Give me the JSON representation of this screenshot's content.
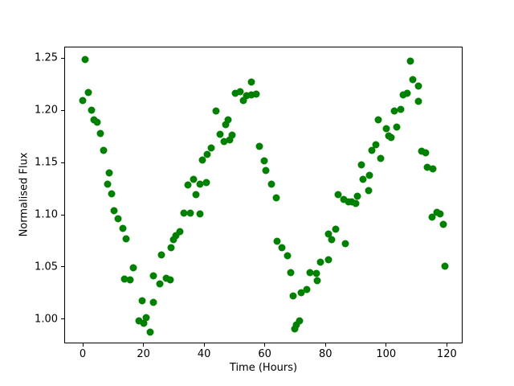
{
  "chart_data": {
    "type": "scatter",
    "title": "",
    "xlabel": "Time (Hours)",
    "ylabel": "Normalised Flux",
    "marker_color": "#008000",
    "marker_size_px": 9,
    "grid": false,
    "legend_position": "none",
    "xlim": [
      -6.1,
      125.2
    ],
    "ylim": [
      0.9768,
      1.2611
    ],
    "x_ticks": [
      0,
      20,
      40,
      60,
      80,
      100,
      120
    ],
    "y_ticks": [
      "1.00",
      "1.05",
      "1.10",
      "1.15",
      "1.20",
      "1.25"
    ],
    "points": [
      [
        -0.1,
        1.2098
      ],
      [
        0.8,
        1.2485
      ],
      [
        1.9,
        1.2175
      ],
      [
        2.9,
        1.2
      ],
      [
        3.7,
        1.191
      ],
      [
        4.7,
        1.1885
      ],
      [
        5.7,
        1.1777
      ],
      [
        7.0,
        1.1615
      ],
      [
        8.1,
        1.1295
      ],
      [
        8.8,
        1.1398
      ],
      [
        9.5,
        1.12
      ],
      [
        10.4,
        1.1041
      ],
      [
        11.7,
        1.0959
      ],
      [
        13.3,
        1.0871
      ],
      [
        14.3,
        1.0769
      ],
      [
        13.7,
        1.0387
      ],
      [
        15.5,
        1.0379
      ],
      [
        16.7,
        1.049
      ],
      [
        18.6,
        0.9985
      ],
      [
        19.5,
        1.0175
      ],
      [
        20.1,
        0.9959
      ],
      [
        21.0,
        1.0015
      ],
      [
        22.3,
        0.9874
      ],
      [
        23.2,
        1.0164
      ],
      [
        23.2,
        1.0418
      ],
      [
        25.3,
        1.0341
      ],
      [
        25.9,
        1.0618
      ],
      [
        27.4,
        1.0392
      ],
      [
        28.8,
        1.0374
      ],
      [
        29.0,
        1.0682
      ],
      [
        29.9,
        1.0759
      ],
      [
        30.8,
        1.0803
      ],
      [
        32.1,
        1.0841
      ],
      [
        33.3,
        1.1015
      ],
      [
        35.4,
        1.1015
      ],
      [
        38.6,
        1.101
      ],
      [
        37.3,
        1.1192
      ],
      [
        34.6,
        1.1283
      ],
      [
        36.5,
        1.1341
      ],
      [
        38.7,
        1.1295
      ],
      [
        40.7,
        1.131
      ],
      [
        39.5,
        1.1527
      ],
      [
        41.1,
        1.1581
      ],
      [
        42.4,
        1.1638
      ],
      [
        43.9,
        1.1995
      ],
      [
        45.2,
        1.1772
      ],
      [
        46.6,
        1.1702
      ],
      [
        48.3,
        1.1715
      ],
      [
        47.2,
        1.1867
      ],
      [
        47.8,
        1.1913
      ],
      [
        49.3,
        1.1764
      ],
      [
        50.4,
        1.2165
      ],
      [
        52.0,
        1.2177
      ],
      [
        52.8,
        1.2092
      ],
      [
        54.0,
        1.2141
      ],
      [
        55.5,
        1.2272
      ],
      [
        55.7,
        1.215
      ],
      [
        57.1,
        1.2154
      ],
      [
        58.3,
        1.1654
      ],
      [
        59.9,
        1.1519
      ],
      [
        60.3,
        1.1423
      ],
      [
        62.1,
        1.129
      ],
      [
        63.7,
        1.1162
      ],
      [
        64.1,
        1.0744
      ],
      [
        65.7,
        1.0687
      ],
      [
        67.5,
        1.0605
      ],
      [
        68.5,
        1.0444
      ],
      [
        69.4,
        1.0225
      ],
      [
        69.9,
        0.9908
      ],
      [
        70.5,
        0.9944
      ],
      [
        71.4,
        0.9985
      ],
      [
        72.1,
        1.025
      ],
      [
        73.9,
        1.0281
      ],
      [
        74.9,
        1.0446
      ],
      [
        77.1,
        1.0441
      ],
      [
        77.3,
        1.0367
      ],
      [
        78.3,
        1.0549
      ],
      [
        81.0,
        1.0567
      ],
      [
        81.0,
        1.0812
      ],
      [
        82.1,
        1.0759
      ],
      [
        83.5,
        1.0859
      ],
      [
        86.5,
        1.0725
      ],
      [
        84.3,
        1.1192
      ],
      [
        86.1,
        1.1144
      ],
      [
        87.7,
        1.1123
      ],
      [
        88.8,
        1.1127
      ],
      [
        90.0,
        1.111
      ],
      [
        90.6,
        1.1175
      ],
      [
        91.8,
        1.1477
      ],
      [
        92.5,
        1.1336
      ],
      [
        94.1,
        1.1233
      ],
      [
        94.5,
        1.1382
      ],
      [
        95.2,
        1.1618
      ],
      [
        96.5,
        1.1669
      ],
      [
        97.4,
        1.1913
      ],
      [
        98.3,
        1.1541
      ],
      [
        100.1,
        1.1823
      ],
      [
        100.8,
        1.1759
      ],
      [
        101.7,
        1.1738
      ],
      [
        102.7,
        1.1998
      ],
      [
        103.5,
        1.1844
      ],
      [
        104.7,
        1.201
      ],
      [
        105.7,
        1.2146
      ],
      [
        107.0,
        1.2167
      ],
      [
        107.9,
        1.2472
      ],
      [
        108.8,
        1.2292
      ],
      [
        110.6,
        1.2087
      ],
      [
        110.7,
        1.2231
      ],
      [
        111.7,
        1.161
      ],
      [
        113.0,
        1.1592
      ],
      [
        113.6,
        1.1456
      ],
      [
        115.4,
        1.1438
      ],
      [
        115.2,
        1.0977
      ],
      [
        116.7,
        1.1027
      ],
      [
        117.9,
        1.1008
      ],
      [
        118.9,
        1.0908
      ],
      [
        119.5,
        1.0508
      ]
    ]
  }
}
